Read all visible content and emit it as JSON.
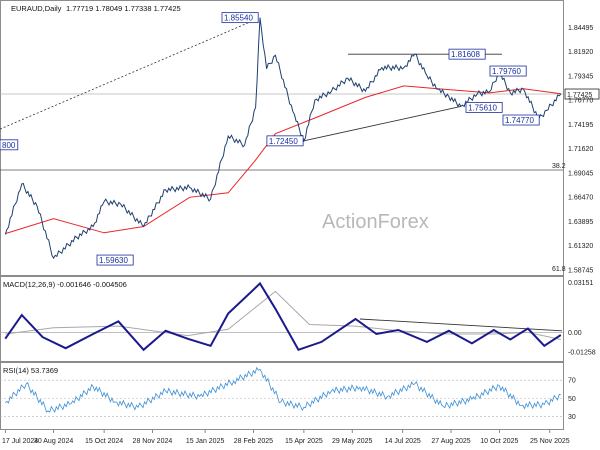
{
  "header": {
    "symbol": "EURAUD,Daily",
    "ohlc": "1.77719 1.78049 1.77338 1.77425"
  },
  "watermark": "ActionForex",
  "colors": {
    "price": "#1f3f6e",
    "ma": "#e8262a",
    "macd": "#1a1a8c",
    "signal": "#a8a8a8",
    "rsi": "#3d8fd6",
    "label_border": "#1a2f9e",
    "line": "#000000"
  },
  "chart_data": [
    {
      "type": "line",
      "panel": "price",
      "series": [
        {
          "x": [
            "2024-07-17",
            "2024-08-01",
            "2024-08-15",
            "2024-08-30",
            "2024-09-20",
            "2024-10-05",
            "2024-10-15",
            "2024-10-30",
            "2024-11-20",
            "2024-12-10",
            "2025-01-01",
            "2025-01-20",
            "2025-02-05",
            "2025-02-20",
            "2025-03-02",
            "2025-03-06",
            "2025-03-12",
            "2025-03-20",
            "2025-04-05",
            "2025-04-15",
            "2025-04-25",
            "2025-05-10",
            "2025-05-25",
            "2025-06-10",
            "2025-06-25",
            "2025-07-15",
            "2025-07-25",
            "2025-08-05",
            "2025-08-15",
            "2025-08-25",
            "2025-09-05",
            "2025-09-20",
            "2025-10-01",
            "2025-10-10",
            "2025-10-20",
            "2025-11-01",
            "2025-11-15",
            "2025-11-22",
            "2025-12-05"
          ],
          "values": [
            1.625,
            1.6788,
            1.655,
            1.6,
            1.622,
            1.6335,
            1.66,
            1.6575,
            1.6335,
            1.6725,
            1.675,
            1.6625,
            1.7295,
            1.72,
            1.76,
            1.8554,
            1.801,
            1.8154,
            1.7555,
            1.7245,
            1.768,
            1.777,
            1.791,
            1.7772,
            1.8024,
            1.8022,
            1.8166,
            1.7938,
            1.7793,
            1.7716,
            1.7611,
            1.7745,
            1.7765,
            1.7976,
            1.7755,
            1.7795,
            1.7477,
            1.7568,
            1.77425
          ]
        },
        {
          "name": "",
          "x": [
            "2024-07-17",
            "2024-08-30",
            "2024-10-15",
            "2024-11-20",
            "2025-01-01",
            "2025-02-05",
            "2025-03-01",
            "2025-03-20",
            "2025-04-25",
            "2025-06-10",
            "2025-07-15",
            "2025-08-15",
            "2025-10-01",
            "2025-11-01",
            "2025-12-05"
          ],
          "values": [
            1.626,
            1.6418,
            1.6268,
            1.6335,
            1.6645,
            1.6693,
            1.7027,
            1.7321,
            1.7488,
            1.7707,
            1.7829,
            1.7799,
            1.7754,
            1.7799,
            1.7745
          ]
        }
      ],
      "labels": [
        "1.85540",
        "1.81608",
        "1.79760",
        "1.77425",
        "1.75610",
        "1.74770",
        "1.72450",
        "1.59630",
        "800"
      ],
      "fib_levels": [
        "38.2",
        "61.8"
      ],
      "ytick_labels": [
        "1.84495",
        "1.81920",
        "1.79345",
        "1.76770",
        "1.74195",
        "1.71620",
        "1.69045",
        "1.66470",
        "1.63895",
        "1.61320",
        "1.58745"
      ],
      "ylim": [
        1.582,
        1.872
      ]
    },
    {
      "type": "line",
      "panel": "macd",
      "title": "MACD(12,26,9) -0.001646 -0.004506",
      "series": [
        {
          "x": [
            "2024-07-17",
            "2024-08-01",
            "2024-08-20",
            "2024-09-10",
            "2024-10-05",
            "2024-10-28",
            "2024-11-20",
            "2024-12-10",
            "2024-12-30",
            "2025-01-20",
            "2025-02-05",
            "2025-03-06",
            "2025-03-20",
            "2025-04-10",
            "2025-05-01",
            "2025-06-01",
            "2025-06-20",
            "2025-07-10",
            "2025-08-05",
            "2025-08-25",
            "2025-09-15",
            "2025-10-05",
            "2025-10-20",
            "2025-11-05",
            "2025-11-20",
            "2025-12-05"
          ],
          "values": [
            -0.004,
            0.011,
            -0.003,
            -0.01,
            -0.001,
            0.007,
            -0.011,
            0.001,
            -0.004,
            -0.0085,
            0.012,
            0.031,
            0.015,
            -0.011,
            -0.006,
            0.0085,
            -0.001,
            0.0015,
            -0.006,
            0.001,
            -0.007,
            0.0015,
            -0.0045,
            0.0025,
            -0.0085,
            -0.001646
          ]
        },
        {
          "x": [
            "2024-07-17",
            "2024-08-30",
            "2024-10-28",
            "2024-12-30",
            "2025-02-05",
            "2025-03-20",
            "2025-04-20",
            "2025-06-01",
            "2025-07-10",
            "2025-08-25",
            "2025-10-05",
            "2025-11-05",
            "2025-12-05"
          ],
          "values": [
            -0.001,
            0.003,
            0.004,
            -0.002,
            0.002,
            0.026,
            0.005,
            0.004,
            0.001,
            -0.001,
            -0.001,
            0.0,
            -0.004506
          ]
        }
      ],
      "ytick_labels": [
        "0.03151",
        "0.00",
        "-0.01258"
      ],
      "ylim": [
        -0.0175,
        0.0345
      ]
    },
    {
      "type": "line",
      "panel": "rsi",
      "title": "RSI(14) 53.7369",
      "series": [
        {
          "x": [
            "2024-07-17",
            "2024-08-05",
            "2024-08-25",
            "2024-09-15",
            "2024-10-05",
            "2024-10-25",
            "2024-11-15",
            "2024-12-10",
            "2025-01-10",
            "2025-02-10",
            "2025-03-06",
            "2025-03-25",
            "2025-04-15",
            "2025-05-10",
            "2025-06-05",
            "2025-06-30",
            "2025-07-25",
            "2025-08-20",
            "2025-09-15",
            "2025-10-10",
            "2025-10-30",
            "2025-11-20",
            "2025-12-05"
          ],
          "values": [
            45,
            66,
            36,
            44,
            63,
            46,
            40,
            58,
            52,
            69,
            82,
            46,
            40,
            58,
            62,
            52,
            66,
            41,
            49,
            64,
            42,
            43,
            53.7369
          ]
        }
      ],
      "ytick_labels": [
        "70",
        "50",
        "30"
      ],
      "ylim": [
        17,
        88
      ]
    }
  ],
  "x_axis": {
    "labels": [
      "17 Jul 2024",
      "30 Aug 2024",
      "15 Oct 2024",
      "28 Nov 2024",
      "15 Jan 2025",
      "28 Feb 2025",
      "15 Apr 2025",
      "29 May 2025",
      "14 Jul 2025",
      "27 Aug 2025",
      "10 Oct 2025",
      "25 Nov 2025"
    ],
    "dates": [
      "2024-07-17",
      "2024-08-30",
      "2024-10-15",
      "2024-11-28",
      "2025-01-15",
      "2025-02-28",
      "2025-04-15",
      "2025-05-29",
      "2025-07-14",
      "2025-08-27",
      "2025-10-10",
      "2025-11-25"
    ]
  }
}
